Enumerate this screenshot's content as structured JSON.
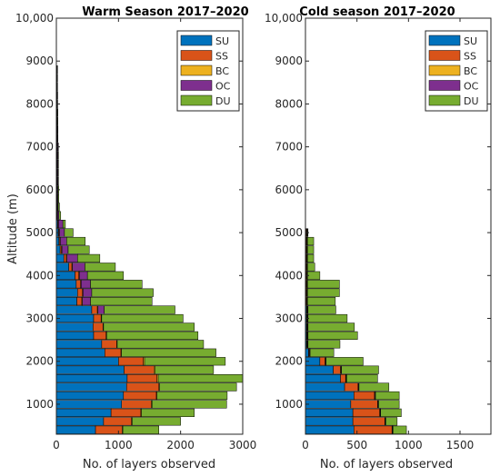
{
  "colors": {
    "SU": "#0072BD",
    "SS": "#D95319",
    "BC": "#EDB120",
    "OC": "#7E2F8E",
    "DU": "#77AC30"
  },
  "chart_data": [
    {
      "type": "bar",
      "orientation": "horizontal-stacked",
      "title": "Warm Season 2017–2020",
      "xlabel": "No. of layers observed",
      "ylabel": "Altitude (m)",
      "xlim": [
        0,
        3000
      ],
      "ylim": [
        300,
        10000
      ],
      "xticks": [
        "0",
        "1000",
        "2000",
        "3000"
      ],
      "yticks": [
        "1000",
        "2000",
        "3000",
        "4000",
        "5000",
        "6000",
        "7000",
        "8000",
        "9000",
        "10,000"
      ],
      "legend": {
        "position": "top-right",
        "entries": [
          "SU",
          "SS",
          "BC",
          "OC",
          "DU"
        ]
      },
      "altitudes": [
        400,
        600,
        800,
        1000,
        1200,
        1400,
        1600,
        1800,
        2000,
        2200,
        2400,
        2600,
        2800,
        3000,
        3200,
        3400,
        3600,
        3800,
        4000,
        4200,
        4400,
        4600,
        4800,
        5000,
        5200,
        5400,
        5600,
        5800,
        6000,
        6200,
        6400,
        6600,
        6800,
        7000,
        7200,
        7400,
        7600,
        7800,
        8000,
        8200,
        8400,
        8600,
        8800
      ],
      "series": [
        {
          "name": "SU",
          "values": [
            630,
            760,
            880,
            1050,
            1080,
            1130,
            1140,
            1090,
            1000,
            780,
            730,
            600,
            590,
            600,
            570,
            330,
            340,
            320,
            300,
            200,
            120,
            60,
            40,
            30,
            20,
            10,
            10,
            5,
            5,
            5,
            5,
            5,
            5,
            5,
            3,
            3,
            3,
            3,
            3,
            3,
            2,
            2,
            2
          ]
        },
        {
          "name": "SS",
          "values": [
            430,
            450,
            480,
            480,
            530,
            520,
            480,
            480,
            400,
            260,
            240,
            200,
            160,
            120,
            90,
            80,
            80,
            70,
            60,
            50,
            40,
            20,
            15,
            10,
            10,
            5,
            5,
            5,
            5,
            5,
            5,
            5,
            5,
            5,
            5,
            5,
            3,
            3,
            3,
            3,
            2,
            2,
            2
          ]
        },
        {
          "name": "BC",
          "values": [
            10,
            10,
            10,
            10,
            10,
            10,
            20,
            20,
            20,
            10,
            10,
            10,
            10,
            10,
            10,
            10,
            10,
            10,
            10,
            10,
            10,
            10,
            10,
            10,
            5,
            5,
            5,
            5,
            5,
            5,
            5,
            5,
            5,
            5,
            5,
            5,
            5,
            5,
            5,
            5,
            5,
            5,
            5
          ]
        },
        {
          "name": "OC",
          "values": [
            0,
            0,
            0,
            0,
            0,
            0,
            0,
            0,
            0,
            0,
            0,
            0,
            0,
            0,
            100,
            130,
            140,
            150,
            130,
            200,
            170,
            100,
            100,
            80,
            70,
            20,
            10,
            10,
            10,
            10,
            10,
            10,
            10,
            10,
            8,
            8,
            8,
            8,
            5,
            5,
            5,
            5,
            5
          ]
        },
        {
          "name": "DU",
          "values": [
            580,
            780,
            850,
            1200,
            1130,
            1240,
            1380,
            940,
            1300,
            1520,
            1390,
            1470,
            1460,
            1310,
            1140,
            990,
            990,
            830,
            580,
            490,
            360,
            340,
            300,
            140,
            40,
            30,
            20,
            15,
            15,
            10,
            10,
            10,
            10,
            8,
            5,
            5,
            5,
            5,
            5,
            5,
            5,
            5,
            5
          ]
        }
      ]
    },
    {
      "type": "bar",
      "orientation": "horizontal-stacked",
      "title": "Cold season 2017–2020",
      "xlabel": "No. of layers observed",
      "ylabel": "",
      "xlim": [
        0,
        1800
      ],
      "ylim": [
        300,
        10000
      ],
      "xticks": [
        "0",
        "500",
        "1000",
        "1500"
      ],
      "yticks": [
        "1000",
        "2000",
        "3000",
        "4000",
        "5000",
        "6000",
        "7000",
        "8000",
        "9000",
        "10,000"
      ],
      "legend": {
        "position": "top-right",
        "entries": [
          "SU",
          "SS",
          "BC",
          "OC",
          "DU"
        ]
      },
      "altitudes": [
        400,
        600,
        800,
        1000,
        1200,
        1400,
        1600,
        1800,
        2000,
        2200,
        2400,
        2600,
        2800,
        3000,
        3200,
        3400,
        3600,
        3800,
        4000,
        4200,
        4400,
        4600,
        4800,
        5000
      ],
      "series": [
        {
          "name": "SU",
          "values": [
            470,
            460,
            460,
            440,
            470,
            380,
            340,
            270,
            140,
            30,
            10,
            10,
            10,
            10,
            10,
            5,
            5,
            5,
            5,
            5,
            5,
            5,
            5,
            5
          ]
        },
        {
          "name": "SS",
          "values": [
            370,
            310,
            260,
            260,
            200,
            130,
            50,
            70,
            50,
            5,
            5,
            5,
            5,
            5,
            5,
            5,
            5,
            5,
            5,
            5,
            5,
            5,
            5,
            5
          ]
        },
        {
          "name": "BC",
          "values": [
            5,
            5,
            5,
            5,
            5,
            5,
            5,
            5,
            5,
            5,
            5,
            5,
            5,
            5,
            5,
            5,
            5,
            5,
            5,
            5,
            5,
            5,
            5,
            5
          ]
        },
        {
          "name": "OC",
          "values": [
            5,
            5,
            5,
            5,
            5,
            5,
            5,
            5,
            5,
            5,
            5,
            5,
            5,
            5,
            5,
            5,
            5,
            5,
            5,
            5,
            5,
            5,
            5,
            5
          ]
        },
        {
          "name": "DU",
          "values": [
            130,
            110,
            200,
            200,
            230,
            290,
            300,
            360,
            360,
            230,
            310,
            480,
            450,
            380,
            270,
            270,
            310,
            310,
            120,
            70,
            60,
            60,
            60,
            5
          ]
        }
      ]
    }
  ]
}
